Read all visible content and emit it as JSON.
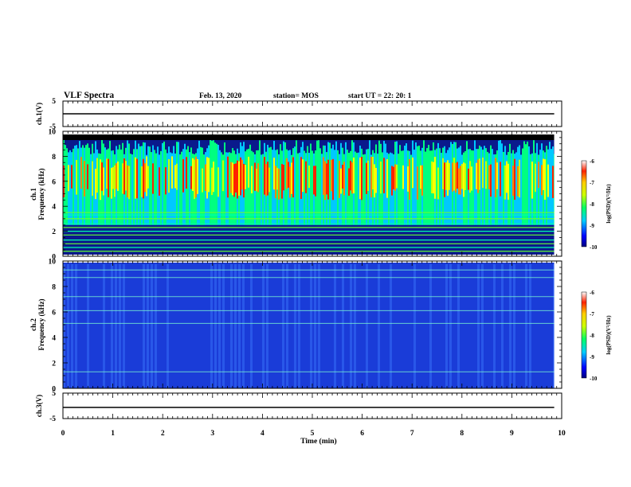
{
  "header": {
    "title": "VLF Spectra",
    "date": "Feb. 13, 2020",
    "station": "station= MOS",
    "start": "start  UT =   22: 20: 1"
  },
  "chart_data": [
    {
      "type": "line",
      "panel": "ch1_voltage",
      "ylabel": "ch.1(V)",
      "ylim": [
        -5,
        5
      ],
      "yticks": [
        "5",
        "-5"
      ],
      "x": [
        0,
        9.85
      ],
      "values": [
        0,
        0
      ],
      "xlim": [
        0,
        10
      ]
    },
    {
      "type": "heatmap",
      "panel": "ch1_spectrogram",
      "ylabel_line1": "ch.1",
      "ylabel_line2": "Frequency (kHz)",
      "ylim": [
        0,
        10
      ],
      "yticks": [
        "0",
        "2",
        "4",
        "6",
        "8",
        "10"
      ],
      "xlim": [
        0,
        10
      ],
      "data_xmax": 9.85,
      "colorbar": {
        "label": "log(PSD)(V²/Hz)",
        "range": [
          -10,
          -6
        ],
        "ticks": [
          "-6",
          "-7",
          "-8",
          "-9",
          "-10"
        ]
      },
      "horizontal_lines_khz": [
        0.4,
        0.7,
        1.0,
        1.3,
        1.7,
        2.0,
        2.3,
        2.6,
        3.0,
        3.3,
        3.5
      ],
      "noise_band_khz": [
        2.5,
        9.3
      ],
      "peak_band_khz": [
        4.5,
        8.0
      ],
      "black_band_khz": [
        9.3,
        10
      ]
    },
    {
      "type": "heatmap",
      "panel": "ch2_spectrogram",
      "ylabel_line1": "ch.2",
      "ylabel_line2": "Frequency (kHz)",
      "ylim": [
        0,
        10
      ],
      "yticks": [
        "0",
        "2",
        "4",
        "6",
        "8",
        "10"
      ],
      "xlim": [
        0,
        10
      ],
      "data_xmax": 9.85,
      "colorbar": {
        "label": "log(PSD)(V²/Hz)",
        "range": [
          -10,
          -6
        ],
        "ticks": [
          "-6",
          "-7",
          "-8",
          "-9",
          "-10"
        ]
      },
      "horizontal_lines_khz": [
        1.3,
        5.1,
        6.1,
        7.2,
        8.7,
        9.3
      ]
    },
    {
      "type": "line",
      "panel": "ch3_voltage",
      "ylabel": "ch.3(V)",
      "ylim": [
        -5,
        5
      ],
      "yticks": [
        "5",
        "-5"
      ],
      "x": [
        0,
        9.85
      ],
      "values": [
        0,
        0
      ],
      "xlim": [
        0,
        10
      ],
      "xlabel": "Time (min)",
      "xticks": [
        "0",
        "1",
        "2",
        "3",
        "4",
        "5",
        "6",
        "7",
        "8",
        "9",
        "10"
      ]
    }
  ]
}
